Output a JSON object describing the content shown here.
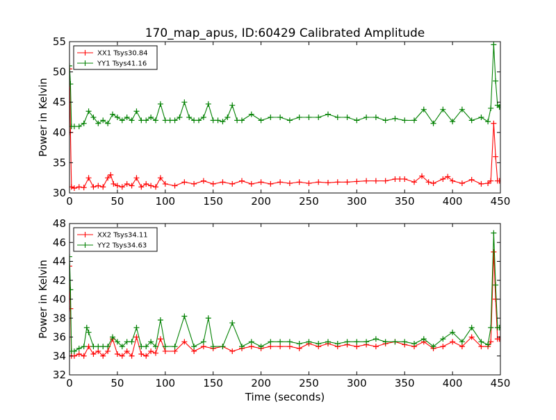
{
  "title": "170_map_apus, ID:60429 Calibrated Amplitude",
  "chart_data": [
    {
      "type": "line",
      "ylabel": "Power in Kelvin",
      "xlabel": "",
      "xlim": [
        0,
        450
      ],
      "ylim": [
        30,
        55
      ],
      "xticks": [
        0,
        50,
        100,
        150,
        200,
        250,
        300,
        350,
        400,
        450
      ],
      "yticks": [
        30,
        35,
        40,
        45,
        50,
        55
      ],
      "legend_position": "top-left",
      "grid": false,
      "series": [
        {
          "name": "XX1 Tsys30.84",
          "color": "#ff0000",
          "marker": "plus",
          "x": [
            0,
            1,
            2,
            5,
            10,
            15,
            20,
            25,
            30,
            35,
            40,
            43,
            46,
            50,
            55,
            60,
            65,
            70,
            75,
            80,
            85,
            90,
            95,
            100,
            110,
            120,
            130,
            140,
            150,
            160,
            170,
            180,
            190,
            200,
            210,
            220,
            230,
            240,
            250,
            260,
            270,
            280,
            290,
            300,
            310,
            320,
            330,
            340,
            345,
            350,
            360,
            368,
            375,
            380,
            390,
            395,
            400,
            410,
            420,
            430,
            437,
            440,
            443,
            445,
            447,
            449
          ],
          "y": [
            50.5,
            40.0,
            31.0,
            30.8,
            31.0,
            30.9,
            32.5,
            31.0,
            31.2,
            31.0,
            32.5,
            33.0,
            31.5,
            31.2,
            31.0,
            31.5,
            31.2,
            32.5,
            31.0,
            31.5,
            31.2,
            31.0,
            32.5,
            31.5,
            31.2,
            31.8,
            31.5,
            32.0,
            31.5,
            31.8,
            31.5,
            32.0,
            31.5,
            31.8,
            31.5,
            31.8,
            31.6,
            31.8,
            31.6,
            31.8,
            31.7,
            31.8,
            31.8,
            31.9,
            32.0,
            32.0,
            32.0,
            32.3,
            32.3,
            32.3,
            31.8,
            32.8,
            31.8,
            31.6,
            32.3,
            32.7,
            32.0,
            31.6,
            32.2,
            31.5,
            31.6,
            32.0,
            41.5,
            36.0,
            32.0,
            32.0
          ]
        },
        {
          "name": "YY1 Tsys41.16",
          "color": "#008000",
          "marker": "plus",
          "x": [
            0,
            1,
            2,
            5,
            10,
            15,
            20,
            25,
            30,
            35,
            40,
            45,
            50,
            55,
            60,
            65,
            70,
            75,
            80,
            85,
            90,
            95,
            100,
            105,
            110,
            115,
            120,
            125,
            130,
            135,
            140,
            145,
            150,
            155,
            160,
            165,
            170,
            175,
            180,
            190,
            200,
            210,
            220,
            230,
            240,
            250,
            260,
            270,
            280,
            290,
            300,
            310,
            320,
            330,
            340,
            350,
            360,
            370,
            380,
            390,
            400,
            410,
            420,
            430,
            437,
            440,
            443,
            445,
            447,
            449
          ],
          "y": [
            51.0,
            48.0,
            41.0,
            41.0,
            41.0,
            41.5,
            43.5,
            42.5,
            41.5,
            42.0,
            41.5,
            43.0,
            42.5,
            42.0,
            42.5,
            42.0,
            43.5,
            42.0,
            42.0,
            42.5,
            42.0,
            44.7,
            42.0,
            42.0,
            42.0,
            42.5,
            45.0,
            42.5,
            42.0,
            42.0,
            42.5,
            44.7,
            42.0,
            42.0,
            41.8,
            42.5,
            44.5,
            42.0,
            42.0,
            43.0,
            42.0,
            42.5,
            42.5,
            42.0,
            42.5,
            42.5,
            42.5,
            43.0,
            42.5,
            42.5,
            42.0,
            42.5,
            42.5,
            42.0,
            42.3,
            42.0,
            42.0,
            43.8,
            41.5,
            43.8,
            41.8,
            43.8,
            42.0,
            42.5,
            41.8,
            44.0,
            54.5,
            48.5,
            44.5,
            44.2
          ]
        }
      ]
    },
    {
      "type": "line",
      "ylabel": "Power in Kelvin",
      "xlabel": "Time (seconds)",
      "xlim": [
        0,
        450
      ],
      "ylim": [
        32,
        48
      ],
      "xticks": [
        0,
        50,
        100,
        150,
        200,
        250,
        300,
        350,
        400,
        450
      ],
      "yticks": [
        32,
        34,
        36,
        38,
        40,
        42,
        44,
        46,
        48
      ],
      "legend_position": "top-left",
      "grid": false,
      "series": [
        {
          "name": "XX2 Tsys34.11",
          "color": "#ff0000",
          "marker": "plus",
          "x": [
            0,
            1,
            2,
            5,
            10,
            15,
            20,
            25,
            30,
            35,
            40,
            45,
            50,
            55,
            60,
            65,
            70,
            75,
            80,
            85,
            90,
            95,
            100,
            110,
            120,
            130,
            140,
            150,
            160,
            170,
            180,
            190,
            200,
            210,
            220,
            230,
            240,
            250,
            260,
            270,
            280,
            290,
            300,
            310,
            320,
            330,
            340,
            350,
            360,
            370,
            380,
            390,
            400,
            410,
            420,
            430,
            437,
            440,
            443,
            445,
            447,
            449
          ],
          "y": [
            43.5,
            39.0,
            34.0,
            34.0,
            34.2,
            34.0,
            35.0,
            34.2,
            34.5,
            34.0,
            34.5,
            35.8,
            34.2,
            34.0,
            34.5,
            34.0,
            36.0,
            34.2,
            34.0,
            34.5,
            34.3,
            35.8,
            34.5,
            34.5,
            35.5,
            34.5,
            35.0,
            34.8,
            35.0,
            34.5,
            34.8,
            35.0,
            34.8,
            35.0,
            35.0,
            35.0,
            34.8,
            35.3,
            35.0,
            35.3,
            35.0,
            35.2,
            35.0,
            35.2,
            35.0,
            35.3,
            35.5,
            35.2,
            35.0,
            35.5,
            34.8,
            35.0,
            35.5,
            35.0,
            36.0,
            35.0,
            35.0,
            35.5,
            45.0,
            40.0,
            35.8,
            35.8
          ]
        },
        {
          "name": "YY2 Tsys34.63",
          "color": "#008000",
          "marker": "plus",
          "x": [
            0,
            1,
            2,
            5,
            10,
            15,
            18,
            20,
            25,
            30,
            35,
            40,
            45,
            50,
            55,
            60,
            65,
            70,
            75,
            80,
            85,
            90,
            95,
            100,
            110,
            120,
            130,
            140,
            145,
            150,
            160,
            170,
            180,
            190,
            200,
            210,
            220,
            230,
            240,
            250,
            260,
            270,
            280,
            290,
            300,
            310,
            320,
            330,
            340,
            350,
            360,
            370,
            380,
            390,
            400,
            410,
            420,
            430,
            437,
            440,
            443,
            445,
            447,
            449
          ],
          "y": [
            44.5,
            41.0,
            34.5,
            34.5,
            34.8,
            35.0,
            37.0,
            36.5,
            35.0,
            35.0,
            35.0,
            35.0,
            36.0,
            35.5,
            35.0,
            35.5,
            35.5,
            37.0,
            35.0,
            35.0,
            35.5,
            35.0,
            37.8,
            35.0,
            35.0,
            38.2,
            35.0,
            35.5,
            38.0,
            35.0,
            35.0,
            37.5,
            35.0,
            35.5,
            35.0,
            35.5,
            35.5,
            35.5,
            35.3,
            35.5,
            35.3,
            35.5,
            35.3,
            35.5,
            35.5,
            35.5,
            35.8,
            35.5,
            35.5,
            35.5,
            35.3,
            35.8,
            35.0,
            35.8,
            36.5,
            35.5,
            37.0,
            35.5,
            35.2,
            37.0,
            47.0,
            41.5,
            37.0,
            37.0
          ]
        }
      ]
    }
  ]
}
